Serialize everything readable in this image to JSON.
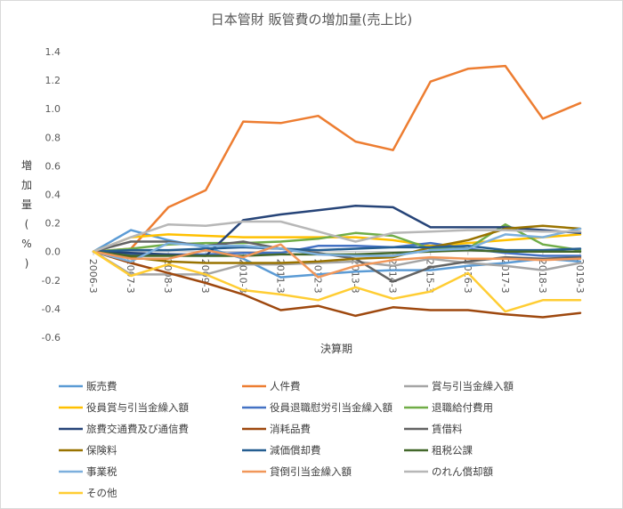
{
  "chart_data": {
    "type": "line",
    "title": "日本管財 販管費の増加量(売上比)",
    "xlabel": "決算期",
    "ylabel": "増加量(%)",
    "ylim": [
      -0.6,
      1.4
    ],
    "yticks": [
      -0.6,
      -0.4,
      -0.2,
      0.0,
      0.2,
      0.4,
      0.6,
      0.8,
      1.0,
      1.2,
      1.4
    ],
    "ytick_labels": [
      "-0.6",
      "-0.4",
      "-0.2",
      "0.0",
      "0.2",
      "0.4",
      "0.6",
      "0.8",
      "1.0",
      "1.2",
      "1.4"
    ],
    "grid": false,
    "legend_position": "bottom",
    "categories": [
      "2006-3",
      "2007-3",
      "2008-3",
      "2009-3",
      "2010-3",
      "2011-3",
      "2012-3",
      "2013-3",
      "2014-3",
      "2015-3",
      "2016-3",
      "2017-3",
      "2018-3",
      "2019-3"
    ],
    "series": [
      {
        "name": "販売費",
        "color": "#5B9BD5",
        "values": [
          0,
          0.15,
          0.08,
          0.03,
          -0.05,
          -0.18,
          -0.16,
          -0.14,
          -0.13,
          -0.13,
          -0.1,
          -0.08,
          -0.05,
          -0.07
        ]
      },
      {
        "name": "人件費",
        "color": "#ED7D31",
        "values": [
          0,
          0.02,
          0.31,
          0.43,
          0.91,
          0.9,
          0.95,
          0.77,
          0.71,
          1.19,
          1.28,
          1.3,
          0.93,
          1.04
        ]
      },
      {
        "name": "賞与引当金繰入額",
        "color": "#A5A5A5",
        "values": [
          0,
          -0.16,
          -0.16,
          -0.16,
          -0.09,
          -0.09,
          -0.08,
          -0.07,
          -0.1,
          -0.05,
          -0.08,
          -0.1,
          -0.13,
          -0.08
        ]
      },
      {
        "name": "役員賞与引当金繰入額",
        "color": "#FFC000",
        "values": [
          0,
          0.1,
          0.12,
          0.11,
          0.1,
          0.1,
          0.1,
          0.1,
          0.08,
          0.04,
          0.06,
          0.08,
          0.1,
          0.12
        ]
      },
      {
        "name": "役員退職慰労引当金繰入額",
        "color": "#4472C4",
        "values": [
          0,
          -0.02,
          -0.02,
          -0.02,
          -0.01,
          -0.01,
          0.04,
          0.04,
          0.03,
          0.06,
          0.02,
          -0.01,
          -0.03,
          -0.03
        ]
      },
      {
        "name": "退職給付費用",
        "color": "#70AD47",
        "values": [
          0,
          0.02,
          0.05,
          0.06,
          0.06,
          0.07,
          0.09,
          0.13,
          0.11,
          0.02,
          0.02,
          0.19,
          0.05,
          0.01
        ]
      },
      {
        "name": "旅費交通費及び通信費",
        "color": "#264478",
        "values": [
          0,
          -0.01,
          -0.02,
          -0.03,
          0.22,
          0.26,
          0.29,
          0.32,
          0.31,
          0.17,
          0.17,
          0.17,
          0.15,
          0.13
        ]
      },
      {
        "name": "消耗品費",
        "color": "#9E480E",
        "values": [
          0,
          -0.08,
          -0.15,
          -0.22,
          -0.3,
          -0.41,
          -0.38,
          -0.45,
          -0.39,
          -0.41,
          -0.41,
          -0.44,
          -0.46,
          -0.43
        ]
      },
      {
        "name": "賃借料",
        "color": "#636363",
        "values": [
          0,
          0.07,
          0.07,
          0.04,
          0.07,
          0.02,
          -0.01,
          -0.05,
          -0.21,
          -0.11,
          -0.07,
          -0.04,
          -0.05,
          -0.04
        ]
      },
      {
        "name": "保険料",
        "color": "#997300",
        "values": [
          0,
          -0.04,
          -0.07,
          -0.08,
          -0.08,
          -0.08,
          -0.07,
          -0.05,
          -0.04,
          0.03,
          0.08,
          0.16,
          0.18,
          0.16
        ]
      },
      {
        "name": "減価償却費",
        "color": "#255E91",
        "values": [
          0,
          0.01,
          0.01,
          0.02,
          0.03,
          0.02,
          0.01,
          0.02,
          0.03,
          0.03,
          0.04,
          0.01,
          0.01,
          0.02
        ]
      },
      {
        "name": "租税公課",
        "color": "#43682B",
        "values": [
          0,
          -0.03,
          -0.03,
          -0.03,
          -0.03,
          -0.02,
          -0.02,
          -0.02,
          -0.01,
          0.0,
          0.01,
          0.0,
          0.0,
          0.0
        ]
      },
      {
        "name": "事業税",
        "color": "#7CAFDD",
        "values": [
          0,
          -0.07,
          0.06,
          0.04,
          0.04,
          0.02,
          -0.02,
          -0.03,
          -0.03,
          0.01,
          0.02,
          0.12,
          0.1,
          0.16
        ]
      },
      {
        "name": "貸倒引当金繰入額",
        "color": "#F1975A",
        "values": [
          0,
          -0.05,
          -0.05,
          0.01,
          -0.04,
          0.05,
          -0.18,
          -0.1,
          -0.06,
          -0.04,
          -0.05,
          -0.05,
          -0.06,
          -0.05
        ]
      },
      {
        "name": "のれん償却額",
        "color": "#B7B7B7",
        "values": [
          0,
          0.1,
          0.19,
          0.18,
          0.21,
          0.21,
          0.14,
          0.07,
          0.13,
          0.14,
          0.15,
          0.15,
          0.14,
          0.14
        ]
      },
      {
        "name": "その他",
        "color": "#FFCD33",
        "values": [
          0,
          -0.17,
          -0.09,
          -0.16,
          -0.27,
          -0.3,
          -0.34,
          -0.25,
          -0.33,
          -0.28,
          -0.15,
          -0.42,
          -0.34,
          -0.34
        ]
      }
    ]
  }
}
